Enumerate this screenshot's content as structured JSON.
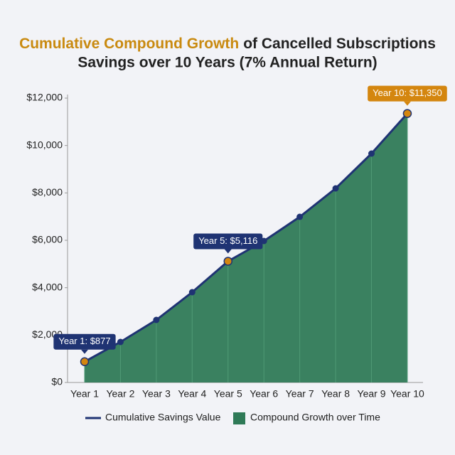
{
  "chart_data": {
    "type": "area",
    "title_highlight": "Cumulative Compound Growth",
    "title_rest": "of Cancelled Subscriptions",
    "subtitle": "Savings over 10 Years (7% Annual Return)",
    "categories": [
      "Year 1",
      "Year 2",
      "Year 3",
      "Year 4",
      "Year 5",
      "Year 6",
      "Year 7",
      "Year 8",
      "Year 9",
      "Year 10"
    ],
    "series": [
      {
        "name": "Cumulative Savings Value",
        "color": "#1f3373",
        "values": [
          877,
          1710,
          2640,
          3810,
          5116,
          5970,
          6990,
          8190,
          9660,
          11350
        ],
        "value_labels": [
          "Year 1: $877",
          null,
          null,
          null,
          "Year 5: $5,116",
          null,
          null,
          null,
          null,
          "Year 10: $11,350"
        ]
      }
    ],
    "area": {
      "name": "Compound Growth over Time",
      "color": "#2f7a57"
    },
    "highlight_color": "#d4860f",
    "ylim": [
      0,
      12000
    ],
    "yticks": [
      {
        "value": 0,
        "label": "$0"
      },
      {
        "value": 2000,
        "label": "$2,000"
      },
      {
        "value": 4000,
        "label": "$4,000"
      },
      {
        "value": 6000,
        "label": "$6,000"
      },
      {
        "value": 8000,
        "label": "$8,000"
      },
      {
        "value": 10000,
        "label": "$10,000"
      },
      {
        "value": 12000,
        "label": "$12,000"
      }
    ]
  }
}
